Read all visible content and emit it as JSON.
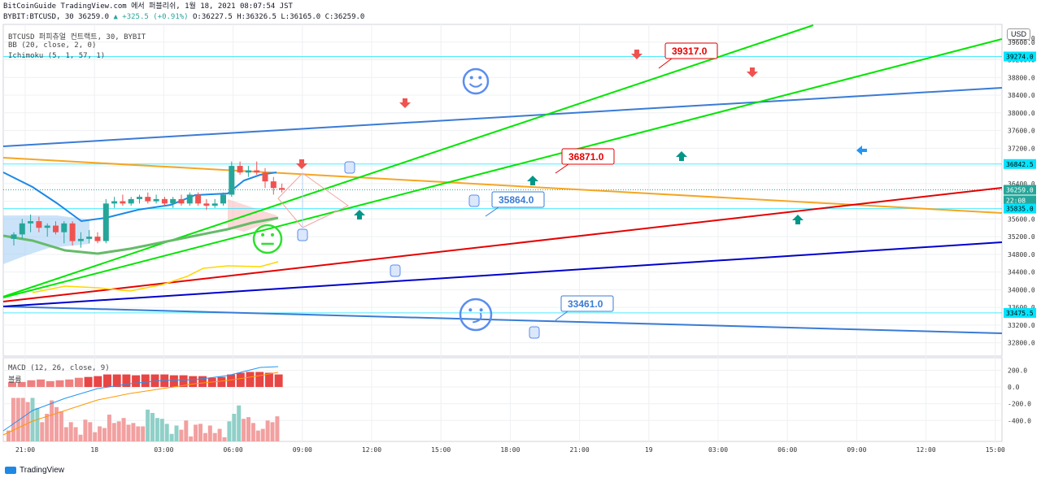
{
  "header": {
    "line1_prefix": "BitCoinGuide TradingView.com 에서 퍼블리쉬, 1월 18, 2021 08:07:54 JST",
    "line2_symbol": "BYBIT:BTCUSD, 30 36259.0",
    "line2_change": "▲ +325.5 (+0.91%)",
    "line2_ohlc": "O:36227.5 H:36326.5 L:36165.0 C:36259.0"
  },
  "legend": {
    "symbol": "BTCUSD 퍼피츄얼 컨트랙트, 30, BYBIT",
    "bb": "BB (20, close, 2, 0)",
    "ichimoku": "Ichimoku (5, 1, 57, 1)",
    "macd": "MACD (12, 26, close, 9)",
    "volume": "볼륨"
  },
  "currency": "USD",
  "footer": {
    "brand": "TradingView"
  },
  "colors": {
    "up": "#26a69a",
    "down": "#ef5350",
    "green_line": "#00e600",
    "orange_line": "#f5a623",
    "red_line": "#e60000",
    "navy_line": "#0000cc",
    "blue_line": "#3a7bd5",
    "hline": "#00e5ff"
  },
  "chart_data": {
    "type": "line",
    "title": "",
    "price_axis": {
      "ticks": [
        39600,
        39200,
        38800,
        38400,
        38000,
        37600,
        37200,
        36800,
        36400,
        36000,
        35600,
        35200,
        34800,
        34400,
        34000,
        33600,
        33200,
        32800
      ],
      "ylim": [
        32500,
        40000
      ],
      "top_partial_tick": "40000.0"
    },
    "time_axis": {
      "labels": [
        "21:00",
        "18",
        "03:00",
        "06:00",
        "09:00",
        "12:00",
        "15:00",
        "18:00",
        "21:00",
        "19",
        "03:00",
        "06:00",
        "09:00",
        "12:00",
        "15:00"
      ]
    },
    "price_badges": [
      {
        "value": "39274.0",
        "color": "#00e5ff"
      },
      {
        "value": "36842.5",
        "color": "#00e5ff"
      },
      {
        "value": "36259.0",
        "color": "#26a69a"
      },
      {
        "value": "22:08",
        "color": "#26a69a"
      },
      {
        "value": "35835.0",
        "color": "#00e5ff"
      },
      {
        "value": "33475.5",
        "color": "#00e5ff"
      }
    ],
    "horizontal_levels": [
      39274.0,
      36842.5,
      35835.0,
      33475.5
    ],
    "callouts": [
      {
        "label": "39317.0",
        "color": "#e60000",
        "price": 39317.0
      },
      {
        "label": "36871.0",
        "color": "#e60000",
        "price": 36871.0
      },
      {
        "label": "35864.0",
        "color": "#3a7bd5",
        "price": 35864.0
      },
      {
        "label": "33461.0",
        "color": "#3a7bd5",
        "price": 33461.0
      }
    ],
    "candles": [
      {
        "o": 35150,
        "h": 35300,
        "l": 35000,
        "c": 35250
      },
      {
        "o": 35250,
        "h": 35600,
        "l": 35150,
        "c": 35500
      },
      {
        "o": 35500,
        "h": 35700,
        "l": 35300,
        "c": 35550
      },
      {
        "o": 35550,
        "h": 35650,
        "l": 35300,
        "c": 35400
      },
      {
        "o": 35400,
        "h": 35500,
        "l": 35200,
        "c": 35450
      },
      {
        "o": 35450,
        "h": 35550,
        "l": 35250,
        "c": 35300
      },
      {
        "o": 35300,
        "h": 35550,
        "l": 35050,
        "c": 35500
      },
      {
        "o": 35500,
        "h": 35550,
        "l": 35000,
        "c": 35100
      },
      {
        "o": 35100,
        "h": 35300,
        "l": 34950,
        "c": 35150
      },
      {
        "o": 35150,
        "h": 35350,
        "l": 35050,
        "c": 35200
      },
      {
        "o": 35200,
        "h": 35300,
        "l": 35050,
        "c": 35100
      },
      {
        "o": 35100,
        "h": 36050,
        "l": 35050,
        "c": 35950
      },
      {
        "o": 35950,
        "h": 36100,
        "l": 35850,
        "c": 36000
      },
      {
        "o": 36000,
        "h": 36150,
        "l": 35900,
        "c": 35950
      },
      {
        "o": 35950,
        "h": 36100,
        "l": 35900,
        "c": 36050
      },
      {
        "o": 36050,
        "h": 36150,
        "l": 35950,
        "c": 36100
      },
      {
        "o": 36100,
        "h": 36200,
        "l": 35950,
        "c": 36000
      },
      {
        "o": 36000,
        "h": 36150,
        "l": 35950,
        "c": 36050
      },
      {
        "o": 36050,
        "h": 36100,
        "l": 35900,
        "c": 35950
      },
      {
        "o": 35950,
        "h": 36100,
        "l": 35850,
        "c": 36050
      },
      {
        "o": 36050,
        "h": 36150,
        "l": 35900,
        "c": 35950
      },
      {
        "o": 35950,
        "h": 36200,
        "l": 35900,
        "c": 36150
      },
      {
        "o": 36150,
        "h": 36200,
        "l": 35900,
        "c": 35950
      },
      {
        "o": 35950,
        "h": 36050,
        "l": 35800,
        "c": 35900
      },
      {
        "o": 35900,
        "h": 36050,
        "l": 35850,
        "c": 35950
      },
      {
        "o": 35950,
        "h": 36200,
        "l": 35900,
        "c": 36150
      },
      {
        "o": 36150,
        "h": 36900,
        "l": 36100,
        "c": 36800
      },
      {
        "o": 36800,
        "h": 36900,
        "l": 36600,
        "c": 36650
      },
      {
        "o": 36650,
        "h": 36800,
        "l": 36550,
        "c": 36700
      },
      {
        "o": 36700,
        "h": 36900,
        "l": 36600,
        "c": 36650
      },
      {
        "o": 36650,
        "h": 36750,
        "l": 36300,
        "c": 36450
      },
      {
        "o": 36450,
        "h": 36550,
        "l": 36150,
        "c": 36300
      },
      {
        "o": 36300,
        "h": 36400,
        "l": 36200,
        "c": 36259
      }
    ],
    "macd": {
      "ylim": [
        -650,
        350
      ],
      "ticks": [
        200.0,
        0.0,
        -200.0,
        -400.0
      ],
      "histogram": [
        -520,
        -130,
        -130,
        -130,
        -180,
        -130,
        -250,
        -420,
        -320,
        -160,
        -240,
        -290,
        -480,
        -420,
        -480,
        -570,
        -390,
        -420,
        -540,
        -470,
        -490,
        -330,
        -430,
        -410,
        -370,
        -450,
        -430,
        -470,
        -470,
        -270,
        -310,
        -370,
        -380,
        -440,
        -560,
        -460,
        -510,
        -400,
        -590,
        -450,
        -440,
        -550,
        -460,
        -550,
        -500,
        -600,
        -410,
        -320,
        -220,
        -380,
        -360,
        -430,
        -520,
        -500,
        -400,
        -420,
        -350
      ],
      "hist_colors_up": [
        0,
        0,
        0,
        0,
        0,
        1,
        1,
        0,
        0,
        0,
        0,
        0,
        0,
        0,
        0,
        0,
        0,
        0,
        0,
        0,
        0,
        0,
        0,
        0,
        0,
        0,
        0,
        0,
        0,
        1,
        1,
        1,
        1,
        1,
        1,
        1,
        0,
        0,
        0,
        0,
        0,
        0,
        0,
        0,
        0,
        0,
        1,
        1,
        1,
        0,
        0,
        0,
        0,
        0,
        0,
        0,
        0
      ],
      "vol_on_top": [
        60,
        60,
        80,
        90,
        70,
        80,
        90,
        110,
        120,
        130,
        150,
        150,
        150,
        140,
        150,
        150,
        150,
        140,
        140,
        130,
        130,
        110,
        120,
        150,
        170,
        180,
        180,
        170,
        150
      ]
    }
  }
}
